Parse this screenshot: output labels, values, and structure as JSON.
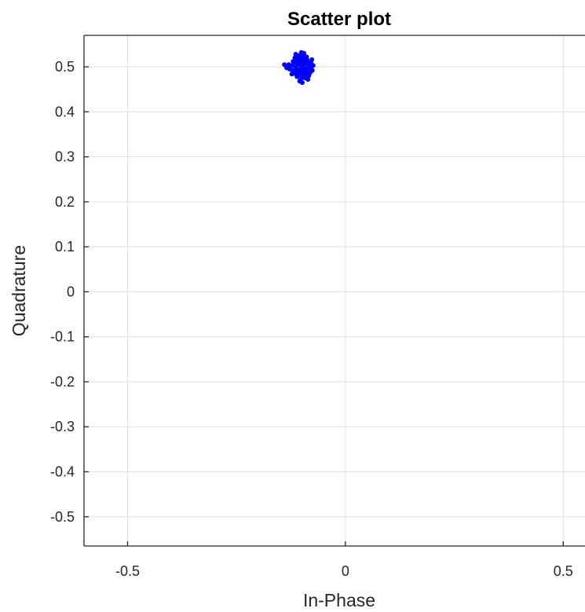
{
  "chart_data": {
    "type": "scatter",
    "title": "Scatter plot",
    "xlabel": "In-Phase",
    "ylabel": "Quadrature",
    "xlim": [
      -0.6,
      0.55
    ],
    "ylim": [
      -0.565,
      0.57
    ],
    "x_ticks": [
      -0.5,
      0,
      0.5
    ],
    "x_tick_labels": [
      "-0.5",
      "0",
      "0.5"
    ],
    "y_ticks": [
      0.5,
      0.4,
      0.3,
      0.2,
      0.1,
      0,
      -0.1,
      -0.2,
      -0.3,
      -0.4,
      -0.5
    ],
    "y_tick_labels": [
      "0.5",
      "0.4",
      "0.3",
      "0.2",
      "0.1",
      "0",
      "-0.1",
      "-0.2",
      "-0.3",
      "-0.4",
      "-0.5"
    ],
    "grid": true,
    "marker_color": "#0000ff",
    "series": [
      {
        "points": [
          [
            -0.1,
            0.5
          ],
          [
            -0.095,
            0.505
          ],
          [
            -0.105,
            0.495
          ],
          [
            -0.11,
            0.51
          ],
          [
            -0.09,
            0.49
          ],
          [
            -0.098,
            0.52
          ],
          [
            -0.102,
            0.48
          ],
          [
            -0.115,
            0.5
          ],
          [
            -0.085,
            0.505
          ],
          [
            -0.112,
            0.488
          ],
          [
            -0.088,
            0.515
          ],
          [
            -0.107,
            0.522
          ],
          [
            -0.093,
            0.478
          ],
          [
            -0.12,
            0.512
          ],
          [
            -0.08,
            0.495
          ],
          [
            -0.118,
            0.485
          ],
          [
            -0.082,
            0.508
          ],
          [
            -0.104,
            0.47
          ],
          [
            -0.096,
            0.528
          ],
          [
            -0.125,
            0.502
          ],
          [
            -0.078,
            0.5
          ],
          [
            -0.109,
            0.515
          ],
          [
            -0.091,
            0.485
          ],
          [
            -0.1,
            0.49
          ],
          [
            -0.1,
            0.51
          ],
          [
            -0.097,
            0.497
          ],
          [
            -0.103,
            0.503
          ],
          [
            -0.113,
            0.495
          ],
          [
            -0.087,
            0.497
          ],
          [
            -0.095,
            0.518
          ],
          [
            -0.106,
            0.482
          ],
          [
            -0.121,
            0.492
          ],
          [
            -0.079,
            0.51
          ],
          [
            -0.099,
            0.465
          ],
          [
            -0.101,
            0.532
          ],
          [
            -0.13,
            0.505
          ],
          [
            -0.076,
            0.492
          ],
          [
            -0.116,
            0.52
          ],
          [
            -0.084,
            0.48
          ],
          [
            -0.108,
            0.505
          ],
          [
            -0.092,
            0.495
          ],
          [
            -0.111,
            0.478
          ],
          [
            -0.089,
            0.522
          ],
          [
            -0.1,
            0.475
          ],
          [
            -0.1,
            0.525
          ],
          [
            -0.083,
            0.49
          ],
          [
            -0.117,
            0.51
          ],
          [
            -0.094,
            0.508
          ],
          [
            -0.106,
            0.492
          ],
          [
            -0.098,
            0.484
          ],
          [
            -0.102,
            0.516
          ],
          [
            -0.123,
            0.484
          ],
          [
            -0.077,
            0.516
          ],
          [
            -0.114,
            0.528
          ],
          [
            -0.086,
            0.472
          ],
          [
            -0.128,
            0.495
          ],
          [
            -0.074,
            0.503
          ],
          [
            -0.105,
            0.468
          ],
          [
            -0.095,
            0.53
          ],
          [
            -0.119,
            0.507
          ],
          [
            -0.081,
            0.487
          ],
          [
            -0.11,
            0.493
          ],
          [
            -0.09,
            0.507
          ],
          [
            -0.097,
            0.512
          ],
          [
            -0.103,
            0.488
          ],
          [
            -0.14,
            0.505
          ],
          [
            -0.135,
            0.498
          ],
          [
            -0.108,
            0.525
          ],
          [
            -0.092,
            0.475
          ],
          [
            -0.1,
            0.5
          ]
        ]
      }
    ]
  }
}
